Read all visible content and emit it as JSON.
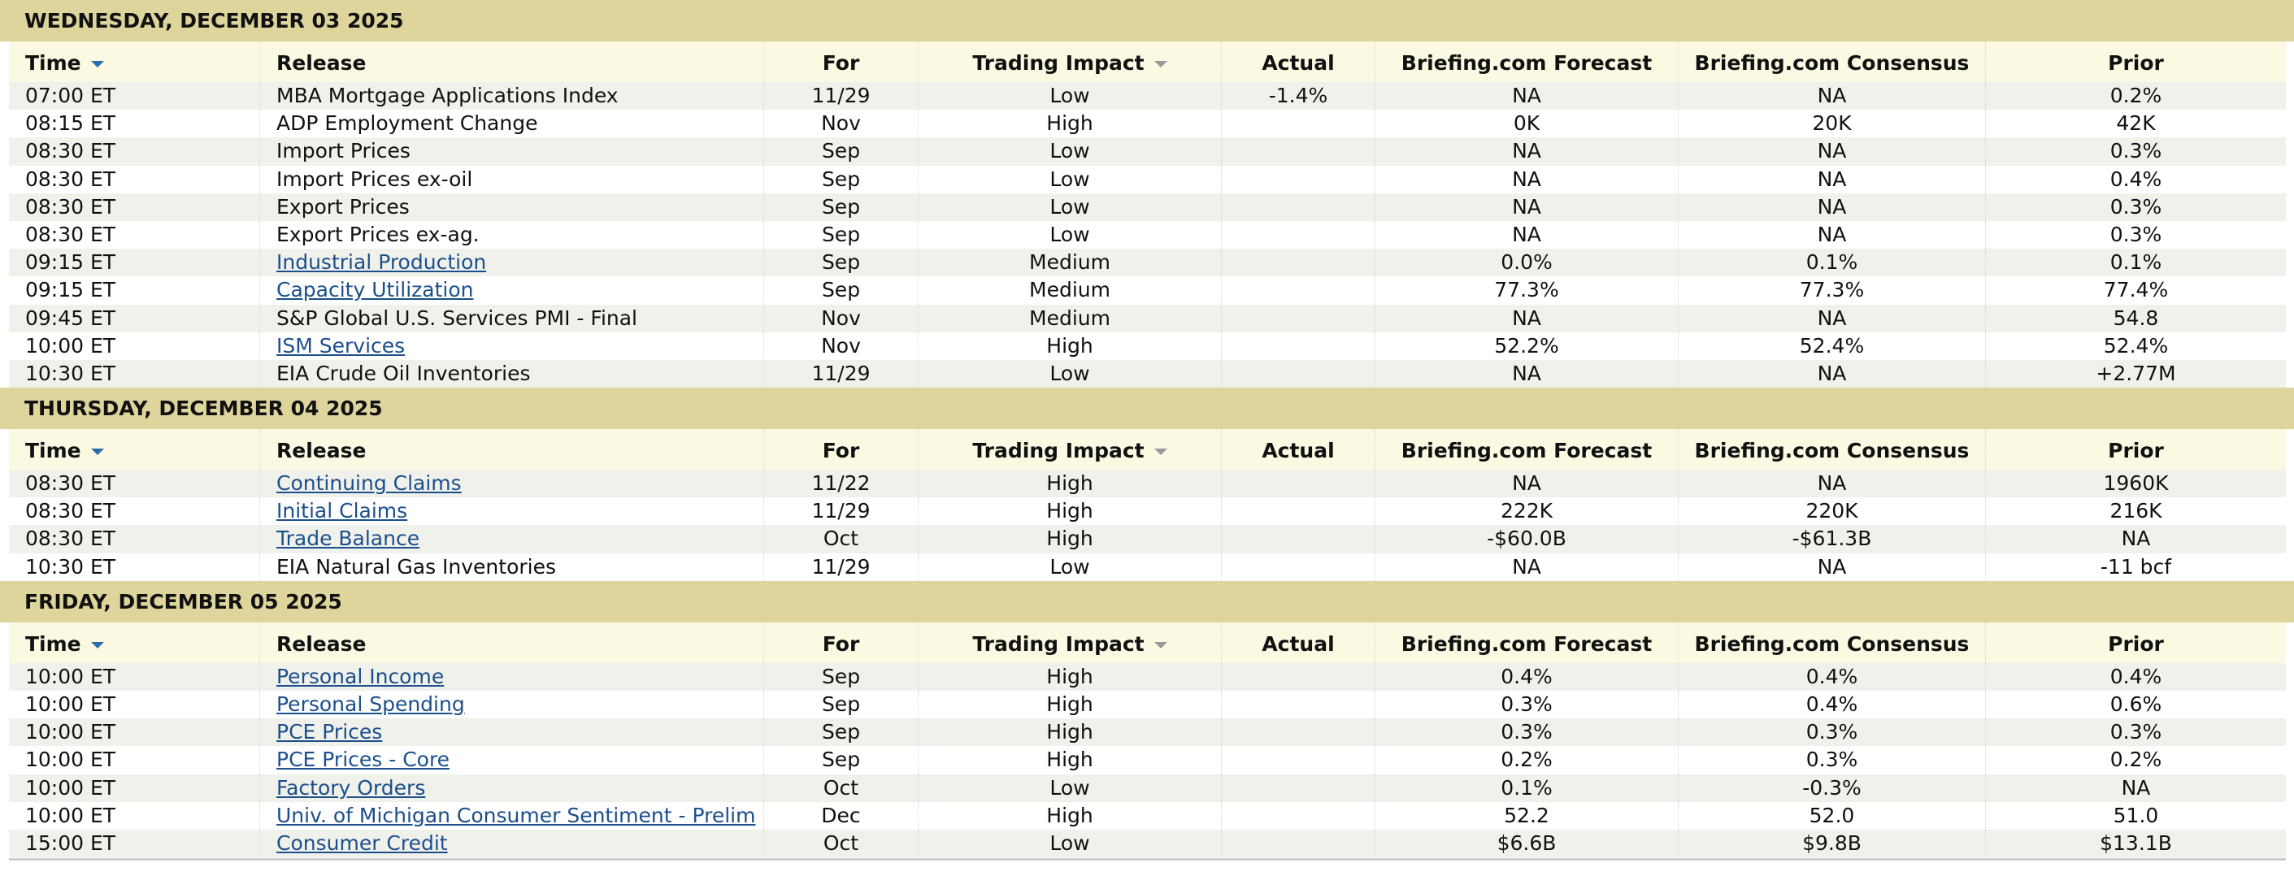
{
  "days": [
    {
      "title": "WEDNESDAY, DECEMBER 03 2025",
      "headers": [
        "Time",
        "Release",
        "For",
        "Trading Impact",
        "Actual",
        "Briefing.com Forecast",
        "Briefing.com Consensus",
        "Prior"
      ],
      "rows": [
        {
          "cells": [
            "07:00 ET",
            "MBA Mortgage Applications Index",
            "11/29",
            "Low",
            "-1.4%",
            "NA",
            "NA",
            "0.2%"
          ]
        },
        {
          "cells": [
            "08:15 ET",
            "ADP Employment Change",
            "Nov",
            "High",
            null,
            "0K",
            "20K",
            "42K"
          ]
        },
        {
          "cells": [
            "08:30 ET",
            "Import Prices",
            "Sep",
            "Low",
            null,
            "NA",
            "NA",
            "0.3%"
          ]
        },
        {
          "cells": [
            "08:30 ET",
            "Import Prices ex-oil",
            "Sep",
            "Low",
            null,
            "NA",
            "NA",
            "0.4%"
          ]
        },
        {
          "cells": [
            "08:30 ET",
            "Export Prices",
            "Sep",
            "Low",
            null,
            "NA",
            "NA",
            "0.3%"
          ]
        },
        {
          "cells": [
            "08:30 ET",
            "Export Prices ex-ag.",
            "Sep",
            "Low",
            null,
            "NA",
            "NA",
            "0.3%"
          ]
        },
        {
          "cells": [
            "09:15 ET",
            "Industrial Production",
            "Sep",
            "Medium",
            null,
            "0.0%",
            "0.1%",
            "0.1%"
          ],
          "link": true
        },
        {
          "cells": [
            "09:15 ET",
            "Capacity Utilization",
            "Sep",
            "Medium",
            null,
            "77.3%",
            "77.3%",
            "77.4%"
          ],
          "link": true
        },
        {
          "cells": [
            "09:45 ET",
            "S&P Global U.S. Services PMI - Final",
            "Nov",
            "Medium",
            null,
            "NA",
            "NA",
            "54.8"
          ]
        },
        {
          "cells": [
            "10:00 ET",
            "ISM Services",
            "Nov",
            "High",
            null,
            "52.2%",
            "52.4%",
            "52.4%"
          ],
          "link": true
        },
        {
          "cells": [
            "10:30 ET",
            "EIA Crude Oil Inventories",
            "11/29",
            "Low",
            null,
            "NA",
            "NA",
            "+2.77M"
          ]
        }
      ]
    },
    {
      "title": "THURSDAY, DECEMBER 04 2025",
      "headers": [
        "Time",
        "Release",
        "For",
        "Trading Impact",
        "Actual",
        "Briefing.com Forecast",
        "Briefing.com Consensus",
        "Prior"
      ],
      "rows": [
        {
          "cells": [
            "08:30 ET",
            "Continuing Claims",
            "11/22",
            "High",
            null,
            "NA",
            "NA",
            "1960K"
          ],
          "link": true
        },
        {
          "cells": [
            "08:30 ET",
            "Initial Claims",
            "11/29",
            "High",
            null,
            "222K",
            "220K",
            "216K"
          ],
          "link": true
        },
        {
          "cells": [
            "08:30 ET",
            "Trade Balance",
            "Oct",
            "High",
            null,
            "-$60.0B",
            "-$61.3B",
            "NA"
          ],
          "link": true
        },
        {
          "cells": [
            "10:30 ET",
            "EIA Natural Gas Inventories",
            "11/29",
            "Low",
            null,
            "NA",
            "NA",
            "-11 bcf"
          ]
        }
      ]
    },
    {
      "title": "FRIDAY, DECEMBER 05 2025",
      "headers": [
        "Time",
        "Release",
        "For",
        "Trading Impact",
        "Actual",
        "Briefing.com Forecast",
        "Briefing.com Consensus",
        "Prior"
      ],
      "rows": [
        {
          "cells": [
            "10:00 ET",
            "Personal Income",
            "Sep",
            "High",
            null,
            "0.4%",
            "0.4%",
            "0.4%"
          ],
          "link": true
        },
        {
          "cells": [
            "10:00 ET",
            "Personal Spending",
            "Sep",
            "High",
            null,
            "0.3%",
            "0.4%",
            "0.6%"
          ],
          "link": true
        },
        {
          "cells": [
            "10:00 ET",
            "PCE Prices",
            "Sep",
            "High",
            null,
            "0.3%",
            "0.3%",
            "0.3%"
          ],
          "link": true
        },
        {
          "cells": [
            "10:00 ET",
            "PCE Prices - Core",
            "Sep",
            "High",
            null,
            "0.2%",
            "0.3%",
            "0.2%"
          ],
          "link": true
        },
        {
          "cells": [
            "10:00 ET",
            "Factory Orders",
            "Oct",
            "Low",
            null,
            "0.1%",
            "-0.3%",
            "NA"
          ],
          "link": true
        },
        {
          "cells": [
            "10:00 ET",
            "Univ. of Michigan Consumer Sentiment - Prelim",
            "Dec",
            "High",
            null,
            "52.2",
            "52.0",
            "51.0"
          ],
          "link": true
        },
        {
          "cells": [
            "15:00 ET",
            "Consumer Credit",
            "Oct",
            "Low",
            null,
            "$6.6B",
            "$9.8B",
            "$13.1B"
          ],
          "link": true
        }
      ]
    }
  ]
}
